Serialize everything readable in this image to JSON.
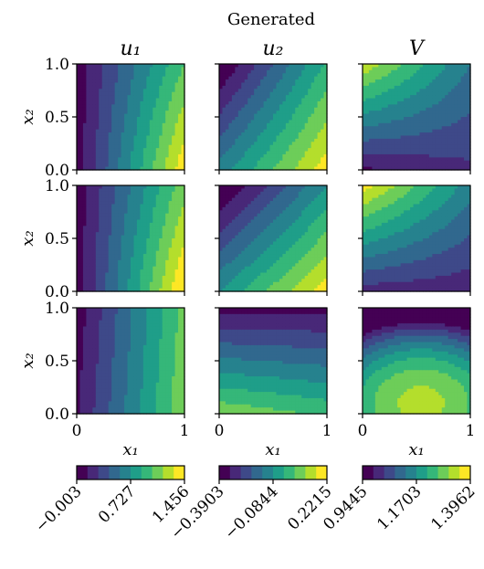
{
  "title": "Generated",
  "chart_data": {
    "type": "heatmap",
    "title": "Generated",
    "column_titles": [
      "u₁",
      "u₂",
      "V"
    ],
    "xlabel": "x₁",
    "ylabel": "x₂",
    "x_ticks": [
      "0",
      "1"
    ],
    "y_ticks": [
      "0.0",
      "0.5",
      "1.0"
    ],
    "xlim": [
      0,
      1
    ],
    "ylim": [
      0,
      1
    ],
    "rows": 3,
    "colormap": "viridis",
    "colorbars": [
      {
        "column": "u₁",
        "ticks": [
          "−0.003",
          "0.727",
          "1.456"
        ],
        "range": [
          -0.003,
          1.456
        ]
      },
      {
        "column": "u₂",
        "ticks": [
          "−0.3903",
          "−0.0844",
          "0.2215"
        ],
        "range": [
          -0.3903,
          0.2215
        ]
      },
      {
        "column": "V",
        "ticks": [
          "0.9445",
          "1.1703",
          "1.3962"
        ],
        "range": [
          0.9445,
          1.3962
        ]
      }
    ]
  }
}
